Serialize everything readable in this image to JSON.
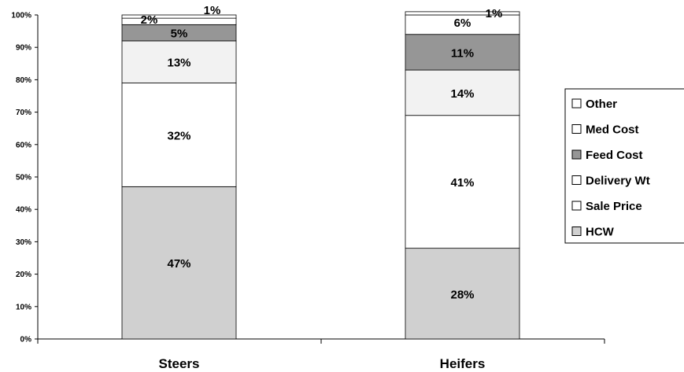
{
  "chart_data": {
    "type": "bar",
    "stacked": true,
    "categories": [
      "Steers",
      "Heifers"
    ],
    "ylim": [
      0,
      100
    ],
    "yticks": [
      "0%",
      "10%",
      "20%",
      "30%",
      "40%",
      "50%",
      "60%",
      "70%",
      "80%",
      "90%",
      "100%"
    ],
    "series": [
      {
        "name": "HCW",
        "color": "#d0d0d0",
        "values": [
          47,
          28
        ],
        "labels": [
          "47%",
          "28%"
        ]
      },
      {
        "name": "Sale Price",
        "color": "#ffffff",
        "values": [
          0,
          0
        ],
        "labels": [
          "",
          ""
        ]
      },
      {
        "name": "Delivery Wt",
        "color": "#ffffff",
        "values": [
          32,
          41
        ],
        "labels": [
          "32%",
          "41%"
        ]
      },
      {
        "name": "Feed Cost",
        "color": "#f2f2f2",
        "values": [
          13,
          14
        ],
        "labels": [
          "13%",
          "14%"
        ]
      },
      {
        "name": "Med Cost",
        "color": "#969696",
        "values": [
          5,
          11
        ],
        "labels": [
          "5%",
          "11%"
        ]
      },
      {
        "name": "Other",
        "color": "#ffffff",
        "values": [
          2,
          6
        ],
        "labels": [
          "2%",
          "6%"
        ]
      },
      {
        "name": "",
        "color": "#ffffff",
        "values": [
          1,
          1
        ],
        "labels": [
          "1%",
          "1%"
        ]
      }
    ],
    "legend": {
      "position": "right",
      "entries": [
        {
          "label": "Other",
          "color": "#ffffff"
        },
        {
          "label": "Med Cost",
          "color": "#ffffff"
        },
        {
          "label": "Feed Cost",
          "color": "#969696"
        },
        {
          "label": "Delivery Wt",
          "color": "#ffffff"
        },
        {
          "label": "Sale Price",
          "color": "#ffffff"
        },
        {
          "label": "HCW",
          "color": "#d0d0d0"
        }
      ]
    },
    "grid": false
  }
}
